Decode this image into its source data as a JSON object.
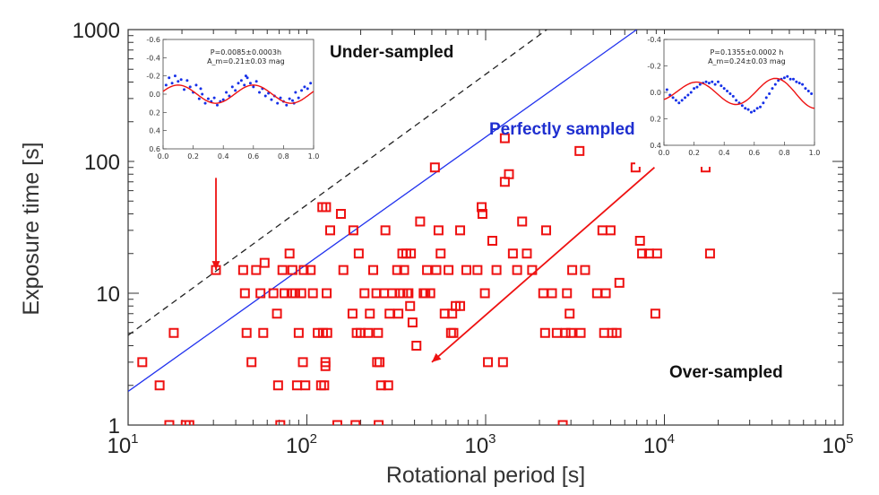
{
  "chart_data": {
    "type": "scatter",
    "xlabel": "Rotational period [s]",
    "ylabel": "Exposure time [s]",
    "xscale": "log",
    "yscale": "log",
    "xlim": [
      10,
      100000
    ],
    "ylim": [
      1,
      1000
    ],
    "x_tick_labels": [
      {
        "value": 10,
        "base": "10",
        "exp": "1"
      },
      {
        "value": 100,
        "base": "10",
        "exp": "2"
      },
      {
        "value": 1000,
        "base": "10",
        "exp": "3"
      },
      {
        "value": 10000,
        "base": "10",
        "exp": "4"
      },
      {
        "value": 100000,
        "base": "10",
        "exp": "5"
      }
    ],
    "y_tick_labels": [
      {
        "value": 1,
        "label": "1"
      },
      {
        "value": 10,
        "label": "10"
      },
      {
        "value": 100,
        "label": "100"
      },
      {
        "value": 1000,
        "label": "1000"
      }
    ],
    "region_labels": {
      "under": "Under-sampled",
      "perfect": "Perfectly sampled",
      "over": "Over-sampled"
    },
    "lines": [
      {
        "name": "perfectly-sampled",
        "style": "solid",
        "color": "#2233ee",
        "points": [
          [
            10,
            1.8
          ],
          [
            7000,
            1000
          ]
        ]
      },
      {
        "name": "under-sampled-limit",
        "style": "dashed",
        "color": "#222222",
        "points": [
          [
            10,
            4.8
          ],
          [
            2200,
            1000
          ]
        ]
      }
    ],
    "arrows": [
      {
        "name": "inset1-arrow",
        "from": [
          31,
          75
        ],
        "to": [
          31,
          15
        ]
      },
      {
        "name": "inset2-arrow",
        "from": [
          8800,
          90
        ],
        "to": [
          500,
          3
        ]
      }
    ],
    "series": [
      {
        "name": "asteroids",
        "marker": "open-square",
        "color": "#ee1111",
        "points": [
          [
            12,
            3
          ],
          [
            15,
            2
          ],
          [
            17,
            1
          ],
          [
            18,
            5
          ],
          [
            21,
            1
          ],
          [
            22,
            1
          ],
          [
            31,
            15
          ],
          [
            44,
            15
          ],
          [
            45,
            10
          ],
          [
            46,
            5
          ],
          [
            49,
            3
          ],
          [
            52,
            15
          ],
          [
            55,
            10
          ],
          [
            57,
            5
          ],
          [
            58,
            17
          ],
          [
            65,
            10
          ],
          [
            68,
            7
          ],
          [
            69,
            2
          ],
          [
            71,
            1
          ],
          [
            73,
            15
          ],
          [
            75,
            10
          ],
          [
            80,
            20
          ],
          [
            82,
            10
          ],
          [
            83,
            15
          ],
          [
            86,
            10
          ],
          [
            88,
            2
          ],
          [
            90,
            5
          ],
          [
            93,
            10
          ],
          [
            95,
            3
          ],
          [
            96,
            15
          ],
          [
            98,
            2
          ],
          [
            105,
            15
          ],
          [
            108,
            10
          ],
          [
            115,
            5
          ],
          [
            120,
            2
          ],
          [
            122,
            45
          ],
          [
            123,
            5
          ],
          [
            125,
            2
          ],
          [
            127,
            3
          ],
          [
            127,
            2.8
          ],
          [
            128,
            45
          ],
          [
            129,
            10
          ],
          [
            130,
            5
          ],
          [
            135,
            30
          ],
          [
            148,
            1
          ],
          [
            155,
            40
          ],
          [
            160,
            15
          ],
          [
            180,
            7
          ],
          [
            182,
            30
          ],
          [
            187,
            1
          ],
          [
            190,
            5
          ],
          [
            195,
            20
          ],
          [
            200,
            5
          ],
          [
            210,
            10
          ],
          [
            220,
            5
          ],
          [
            225,
            7
          ],
          [
            235,
            15
          ],
          [
            245,
            10
          ],
          [
            247,
            3
          ],
          [
            250,
            5
          ],
          [
            252,
            1
          ],
          [
            255,
            3
          ],
          [
            260,
            2
          ],
          [
            270,
            10
          ],
          [
            275,
            30
          ],
          [
            285,
            2
          ],
          [
            290,
            7
          ],
          [
            300,
            10
          ],
          [
            320,
            15
          ],
          [
            325,
            7
          ],
          [
            330,
            10
          ],
          [
            342,
            20
          ],
          [
            345,
            10
          ],
          [
            350,
            15
          ],
          [
            360,
            20
          ],
          [
            365,
            10
          ],
          [
            370,
            10
          ],
          [
            378,
            8
          ],
          [
            382,
            20
          ],
          [
            390,
            6
          ],
          [
            410,
            4
          ],
          [
            430,
            35
          ],
          [
            450,
            10
          ],
          [
            460,
            10
          ],
          [
            470,
            15
          ],
          [
            490,
            10
          ],
          [
            520,
            90
          ],
          [
            530,
            15
          ],
          [
            545,
            30
          ],
          [
            560,
            20
          ],
          [
            590,
            7
          ],
          [
            620,
            15
          ],
          [
            640,
            5
          ],
          [
            650,
            7
          ],
          [
            660,
            5
          ],
          [
            680,
            8
          ],
          [
            720,
            30
          ],
          [
            720,
            8
          ],
          [
            780,
            15
          ],
          [
            900,
            15
          ],
          [
            950,
            45
          ],
          [
            960,
            40
          ],
          [
            990,
            10
          ],
          [
            1030,
            3
          ],
          [
            1090,
            25
          ],
          [
            1150,
            15
          ],
          [
            1250,
            3
          ],
          [
            1280,
            150
          ],
          [
            1280,
            70
          ],
          [
            1350,
            80
          ],
          [
            1420,
            20
          ],
          [
            1500,
            15
          ],
          [
            1600,
            35
          ],
          [
            1700,
            20
          ],
          [
            1820,
            15
          ],
          [
            2100,
            10
          ],
          [
            2150,
            5
          ],
          [
            2180,
            30
          ],
          [
            2350,
            10
          ],
          [
            2500,
            5
          ],
          [
            2700,
            1
          ],
          [
            2800,
            5
          ],
          [
            2850,
            10
          ],
          [
            2950,
            7
          ],
          [
            3000,
            5
          ],
          [
            3050,
            15
          ],
          [
            3350,
            120
          ],
          [
            3400,
            5
          ],
          [
            3600,
            15
          ],
          [
            4200,
            10
          ],
          [
            4500,
            30
          ],
          [
            4600,
            5
          ],
          [
            4700,
            10
          ],
          [
            5000,
            30
          ],
          [
            5100,
            5
          ],
          [
            5400,
            5
          ],
          [
            5600,
            12
          ],
          [
            6900,
            90
          ],
          [
            7300,
            25
          ],
          [
            7500,
            20
          ],
          [
            8200,
            20
          ],
          [
            8900,
            7
          ],
          [
            9100,
            20
          ],
          [
            17000,
            90
          ],
          [
            18000,
            20
          ]
        ]
      }
    ],
    "insets": [
      {
        "name": "inset-left",
        "annotation_line1": "P=0.0085±0.0003h",
        "annotation_line2": "A_m=0.21±0.03 mag",
        "xlim": [
          0.0,
          1.0
        ],
        "ylim_inverted": [
          -0.6,
          0.6
        ],
        "x_tick_labels": [
          "0.0",
          "0.2",
          "0.4",
          "0.6",
          "0.8",
          "1.0"
        ],
        "y_tick_labels": [
          "-0.6",
          "-0.4",
          "-0.2",
          "0.0",
          "0.2",
          "0.4",
          "0.6"
        ],
        "fit": {
          "type": "sinusoid",
          "amplitude": 0.1,
          "cycles": 2,
          "phase": 0.1
        },
        "points": [
          [
            0.02,
            -0.1
          ],
          [
            0.04,
            -0.18
          ],
          [
            0.06,
            -0.12
          ],
          [
            0.08,
            -0.2
          ],
          [
            0.1,
            -0.14
          ],
          [
            0.12,
            -0.16
          ],
          [
            0.14,
            -0.05
          ],
          [
            0.16,
            -0.15
          ],
          [
            0.18,
            -0.08
          ],
          [
            0.2,
            -0.02
          ],
          [
            0.22,
            -0.1
          ],
          [
            0.24,
            0.05
          ],
          [
            0.26,
            0.0
          ],
          [
            0.28,
            0.1
          ],
          [
            0.3,
            0.05
          ],
          [
            0.32,
            0.08
          ],
          [
            0.34,
            0.04
          ],
          [
            0.36,
            0.12
          ],
          [
            0.38,
            0.08
          ],
          [
            0.4,
            0.06
          ],
          [
            0.42,
            -0.02
          ],
          [
            0.44,
            0.02
          ],
          [
            0.46,
            -0.08
          ],
          [
            0.48,
            -0.04
          ],
          [
            0.5,
            -0.12
          ],
          [
            0.52,
            -0.15
          ],
          [
            0.54,
            -0.1
          ],
          [
            0.56,
            -0.18
          ],
          [
            0.58,
            -0.12
          ],
          [
            0.6,
            -0.08
          ],
          [
            0.62,
            -0.14
          ],
          [
            0.64,
            -0.02
          ],
          [
            0.66,
            -0.06
          ],
          [
            0.68,
            0.02
          ],
          [
            0.7,
            -0.01
          ],
          [
            0.72,
            0.06
          ],
          [
            0.74,
            0.02
          ],
          [
            0.76,
            0.1
          ],
          [
            0.78,
            0.04
          ],
          [
            0.8,
            0.08
          ],
          [
            0.82,
            0.12
          ],
          [
            0.84,
            0.05
          ],
          [
            0.86,
            0.07
          ],
          [
            0.88,
            -0.02
          ],
          [
            0.9,
            0.04
          ],
          [
            0.92,
            -0.04
          ],
          [
            0.94,
            -0.08
          ],
          [
            0.96,
            -0.06
          ],
          [
            0.98,
            -0.12
          ],
          [
            0.25,
            -0.06
          ],
          [
            0.55,
            -0.2
          ],
          [
            0.87,
            0.1
          ]
        ]
      },
      {
        "name": "inset-right",
        "annotation_line1": "P=0.1355±0.0002 h",
        "annotation_line2": "A_m=0.24±0.03 mag",
        "xlim": [
          0.0,
          1.0
        ],
        "ylim_inverted": [
          -0.4,
          0.4
        ],
        "x_tick_labels": [
          "0.0",
          "0.2",
          "0.4",
          "0.6",
          "0.8",
          "1.0"
        ],
        "y_tick_labels": [
          "-0.4",
          "-0.2",
          "0.0",
          "0.2",
          "0.4"
        ],
        "fit": {
          "type": "double-peak",
          "amplitude": 0.12
        },
        "points": [
          [
            0.02,
            -0.02
          ],
          [
            0.04,
            0.02
          ],
          [
            0.06,
            0.04
          ],
          [
            0.08,
            0.06
          ],
          [
            0.1,
            0.08
          ],
          [
            0.12,
            0.06
          ],
          [
            0.14,
            0.04
          ],
          [
            0.16,
            0.02
          ],
          [
            0.18,
            0.0
          ],
          [
            0.2,
            -0.03
          ],
          [
            0.22,
            -0.04
          ],
          [
            0.24,
            -0.06
          ],
          [
            0.26,
            -0.07
          ],
          [
            0.28,
            -0.08
          ],
          [
            0.3,
            -0.07
          ],
          [
            0.32,
            -0.08
          ],
          [
            0.34,
            -0.06
          ],
          [
            0.36,
            -0.08
          ],
          [
            0.38,
            -0.05
          ],
          [
            0.4,
            -0.03
          ],
          [
            0.42,
            -0.01
          ],
          [
            0.44,
            0.01
          ],
          [
            0.46,
            0.03
          ],
          [
            0.48,
            0.06
          ],
          [
            0.5,
            0.08
          ],
          [
            0.52,
            0.1
          ],
          [
            0.54,
            0.12
          ],
          [
            0.56,
            0.13
          ],
          [
            0.58,
            0.15
          ],
          [
            0.6,
            0.14
          ],
          [
            0.62,
            0.12
          ],
          [
            0.64,
            0.11
          ],
          [
            0.66,
            0.08
          ],
          [
            0.68,
            0.04
          ],
          [
            0.7,
            0.01
          ],
          [
            0.72,
            -0.03
          ],
          [
            0.74,
            -0.06
          ],
          [
            0.76,
            -0.09
          ],
          [
            0.78,
            -0.1
          ],
          [
            0.8,
            -0.11
          ],
          [
            0.82,
            -0.12
          ],
          [
            0.84,
            -0.1
          ],
          [
            0.86,
            -0.1
          ],
          [
            0.88,
            -0.08
          ],
          [
            0.9,
            -0.07
          ],
          [
            0.92,
            -0.06
          ],
          [
            0.94,
            -0.03
          ],
          [
            0.96,
            -0.01
          ],
          [
            0.98,
            0.01
          ]
        ]
      }
    ]
  },
  "colors": {
    "marker": "#ee1111",
    "fit_line": "#ee1111",
    "inset_points": "#1530e8",
    "perfect_line": "#2233ee",
    "under_line": "#222222",
    "axis": "#333333",
    "arrow": "#ee1111"
  }
}
